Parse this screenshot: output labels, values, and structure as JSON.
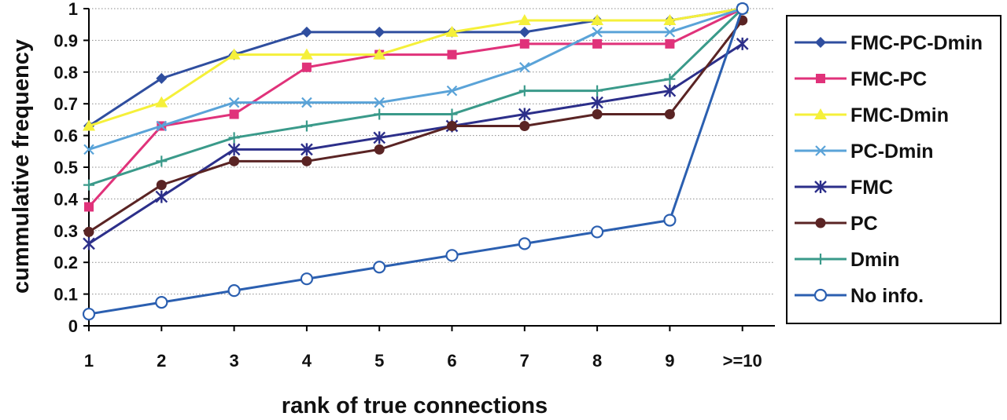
{
  "chart_data": {
    "type": "line",
    "title": "",
    "xlabel": "rank of true connections",
    "ylabel": "cummulative frequency",
    "categories": [
      "1",
      "2",
      "3",
      "4",
      "5",
      "6",
      "7",
      "8",
      "9",
      ">=10"
    ],
    "ylim": [
      0,
      1
    ],
    "yticks": [
      "0",
      "0.1",
      "0.2",
      "0.3",
      "0.4",
      "0.5",
      "0.6",
      "0.7",
      "0.8",
      "0.9",
      "1"
    ],
    "grid": "horizontal dotted",
    "legend_position": "right",
    "series": [
      {
        "name": "FMC-PC-Dmin",
        "color": "#2f4e9f",
        "marker": "diamond",
        "values": [
          0.63,
          0.78,
          0.855,
          0.926,
          0.926,
          0.926,
          0.926,
          0.963,
          0.963,
          1.0
        ]
      },
      {
        "name": "FMC-PC",
        "color": "#e0327a",
        "marker": "square",
        "values": [
          0.375,
          0.63,
          0.667,
          0.815,
          0.855,
          0.855,
          0.889,
          0.889,
          0.889,
          1.0
        ]
      },
      {
        "name": "FMC-Dmin",
        "color": "#f5f03a",
        "marker": "triangle",
        "values": [
          0.63,
          0.704,
          0.855,
          0.855,
          0.855,
          0.926,
          0.963,
          0.963,
          0.963,
          1.0
        ]
      },
      {
        "name": "PC-Dmin",
        "color": "#5aa3d8",
        "marker": "x",
        "values": [
          0.556,
          0.63,
          0.704,
          0.704,
          0.704,
          0.741,
          0.815,
          0.926,
          0.926,
          1.0
        ]
      },
      {
        "name": "FMC",
        "color": "#2c2f8a",
        "marker": "star",
        "values": [
          0.259,
          0.407,
          0.556,
          0.556,
          0.593,
          0.63,
          0.667,
          0.704,
          0.741,
          0.889
        ]
      },
      {
        "name": "PC",
        "color": "#5a2424",
        "marker": "dot",
        "values": [
          0.296,
          0.444,
          0.519,
          0.519,
          0.556,
          0.63,
          0.63,
          0.667,
          0.667,
          0.963
        ]
      },
      {
        "name": "Dmin",
        "color": "#3a9a8a",
        "marker": "plus",
        "values": [
          0.444,
          0.519,
          0.593,
          0.63,
          0.667,
          0.667,
          0.741,
          0.741,
          0.778,
          1.0
        ]
      },
      {
        "name": "No info.",
        "color": "#2b5fb0",
        "marker": "circle",
        "values": [
          0.037,
          0.074,
          0.111,
          0.148,
          0.185,
          0.222,
          0.259,
          0.296,
          0.333,
          1.0
        ]
      }
    ]
  }
}
